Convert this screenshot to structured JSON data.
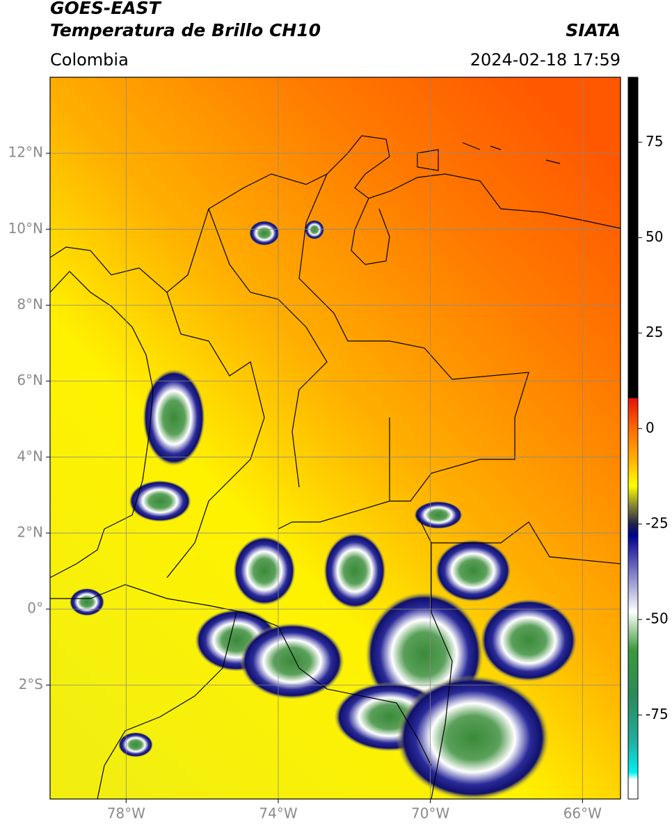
{
  "header": {
    "title": "GOES-EAST",
    "subtitle": "Temperatura de Brillo CH10",
    "region": "Colombia",
    "source": "SIATA",
    "datetime": "2024-02-18 17:59"
  },
  "map": {
    "lonlim": [
      -80,
      -65
    ],
    "latlim": [
      -5,
      14
    ],
    "lonticks": [
      {
        "value": -78,
        "label": "78°W"
      },
      {
        "value": -74,
        "label": "74°W"
      },
      {
        "value": -70,
        "label": "70°W"
      },
      {
        "value": -66,
        "label": "66°W"
      }
    ],
    "latticks": [
      {
        "value": 12,
        "label": "12°N"
      },
      {
        "value": 10,
        "label": "10°N"
      },
      {
        "value": 8,
        "label": "8°N"
      },
      {
        "value": 6,
        "label": "6°N"
      },
      {
        "value": 4,
        "label": "4°N"
      },
      {
        "value": 2,
        "label": "2°N"
      },
      {
        "value": 0,
        "label": "0°"
      },
      {
        "value": -2,
        "label": "2°S"
      }
    ],
    "grid": true
  },
  "colorbar": {
    "lim": [
      -97,
      92
    ],
    "ticks": [
      75,
      50,
      25,
      0,
      -25,
      -50,
      -75
    ],
    "colormap": [
      {
        "value": 92,
        "color": "#000000"
      },
      {
        "value": 8,
        "color": "#000000"
      },
      {
        "value": 7.9,
        "color": "#e8120c"
      },
      {
        "value": 0,
        "color": "#ff6a00"
      },
      {
        "value": -8,
        "color": "#ffb000"
      },
      {
        "value": -15,
        "color": "#ffff00"
      },
      {
        "value": -20,
        "color": "#8a8a30"
      },
      {
        "value": -25,
        "color": "#20204a"
      },
      {
        "value": -28,
        "color": "#000090"
      },
      {
        "value": -38,
        "color": "#8080c8"
      },
      {
        "value": -48,
        "color": "#ffffff"
      },
      {
        "value": -58,
        "color": "#3a9a3a"
      },
      {
        "value": -70,
        "color": "#2a8a5a"
      },
      {
        "value": -82,
        "color": "#20b0a0"
      },
      {
        "value": -90,
        "color": "#00f0f0"
      },
      {
        "value": -92,
        "color": "#ffffff"
      },
      {
        "value": -97,
        "color": "#ffffff"
      }
    ]
  }
}
